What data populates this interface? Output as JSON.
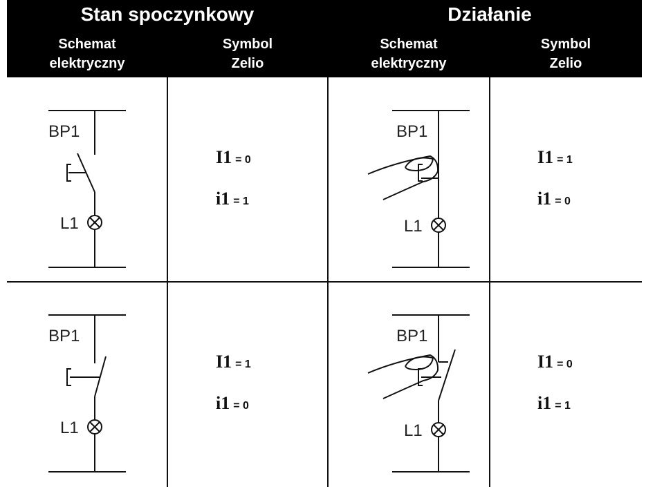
{
  "header": {
    "groups": [
      "Stan spoczynkowy",
      "Działanie"
    ],
    "columns": [
      [
        "Schemat",
        "elektryczny"
      ],
      [
        "Symbol",
        "Zelio"
      ],
      [
        "Schemat",
        "elektryczny"
      ],
      [
        "Symbol",
        "Zelio"
      ]
    ]
  },
  "rows": [
    {
      "schematics": [
        {
          "switch": "BP1",
          "lamp": "L1"
        },
        {
          "switch": "BP1",
          "lamp": "L1"
        }
      ],
      "symbols": [
        [
          {
            "name": "I1",
            "value": "= 0"
          },
          {
            "name": "i1",
            "value": "= 1"
          }
        ],
        [
          {
            "name": "I1",
            "value": "= 1"
          },
          {
            "name": "i1",
            "value": "= 0"
          }
        ]
      ]
    },
    {
      "schematics": [
        {
          "switch": "BP1",
          "lamp": "L1"
        },
        {
          "switch": "BP1",
          "lamp": "L1"
        }
      ],
      "symbols": [
        [
          {
            "name": "I1",
            "value": "= 1"
          },
          {
            "name": "i1",
            "value": "= 0"
          }
        ],
        [
          {
            "name": "I1",
            "value": "= 0"
          },
          {
            "name": "i1",
            "value": "= 1"
          }
        ]
      ]
    }
  ]
}
